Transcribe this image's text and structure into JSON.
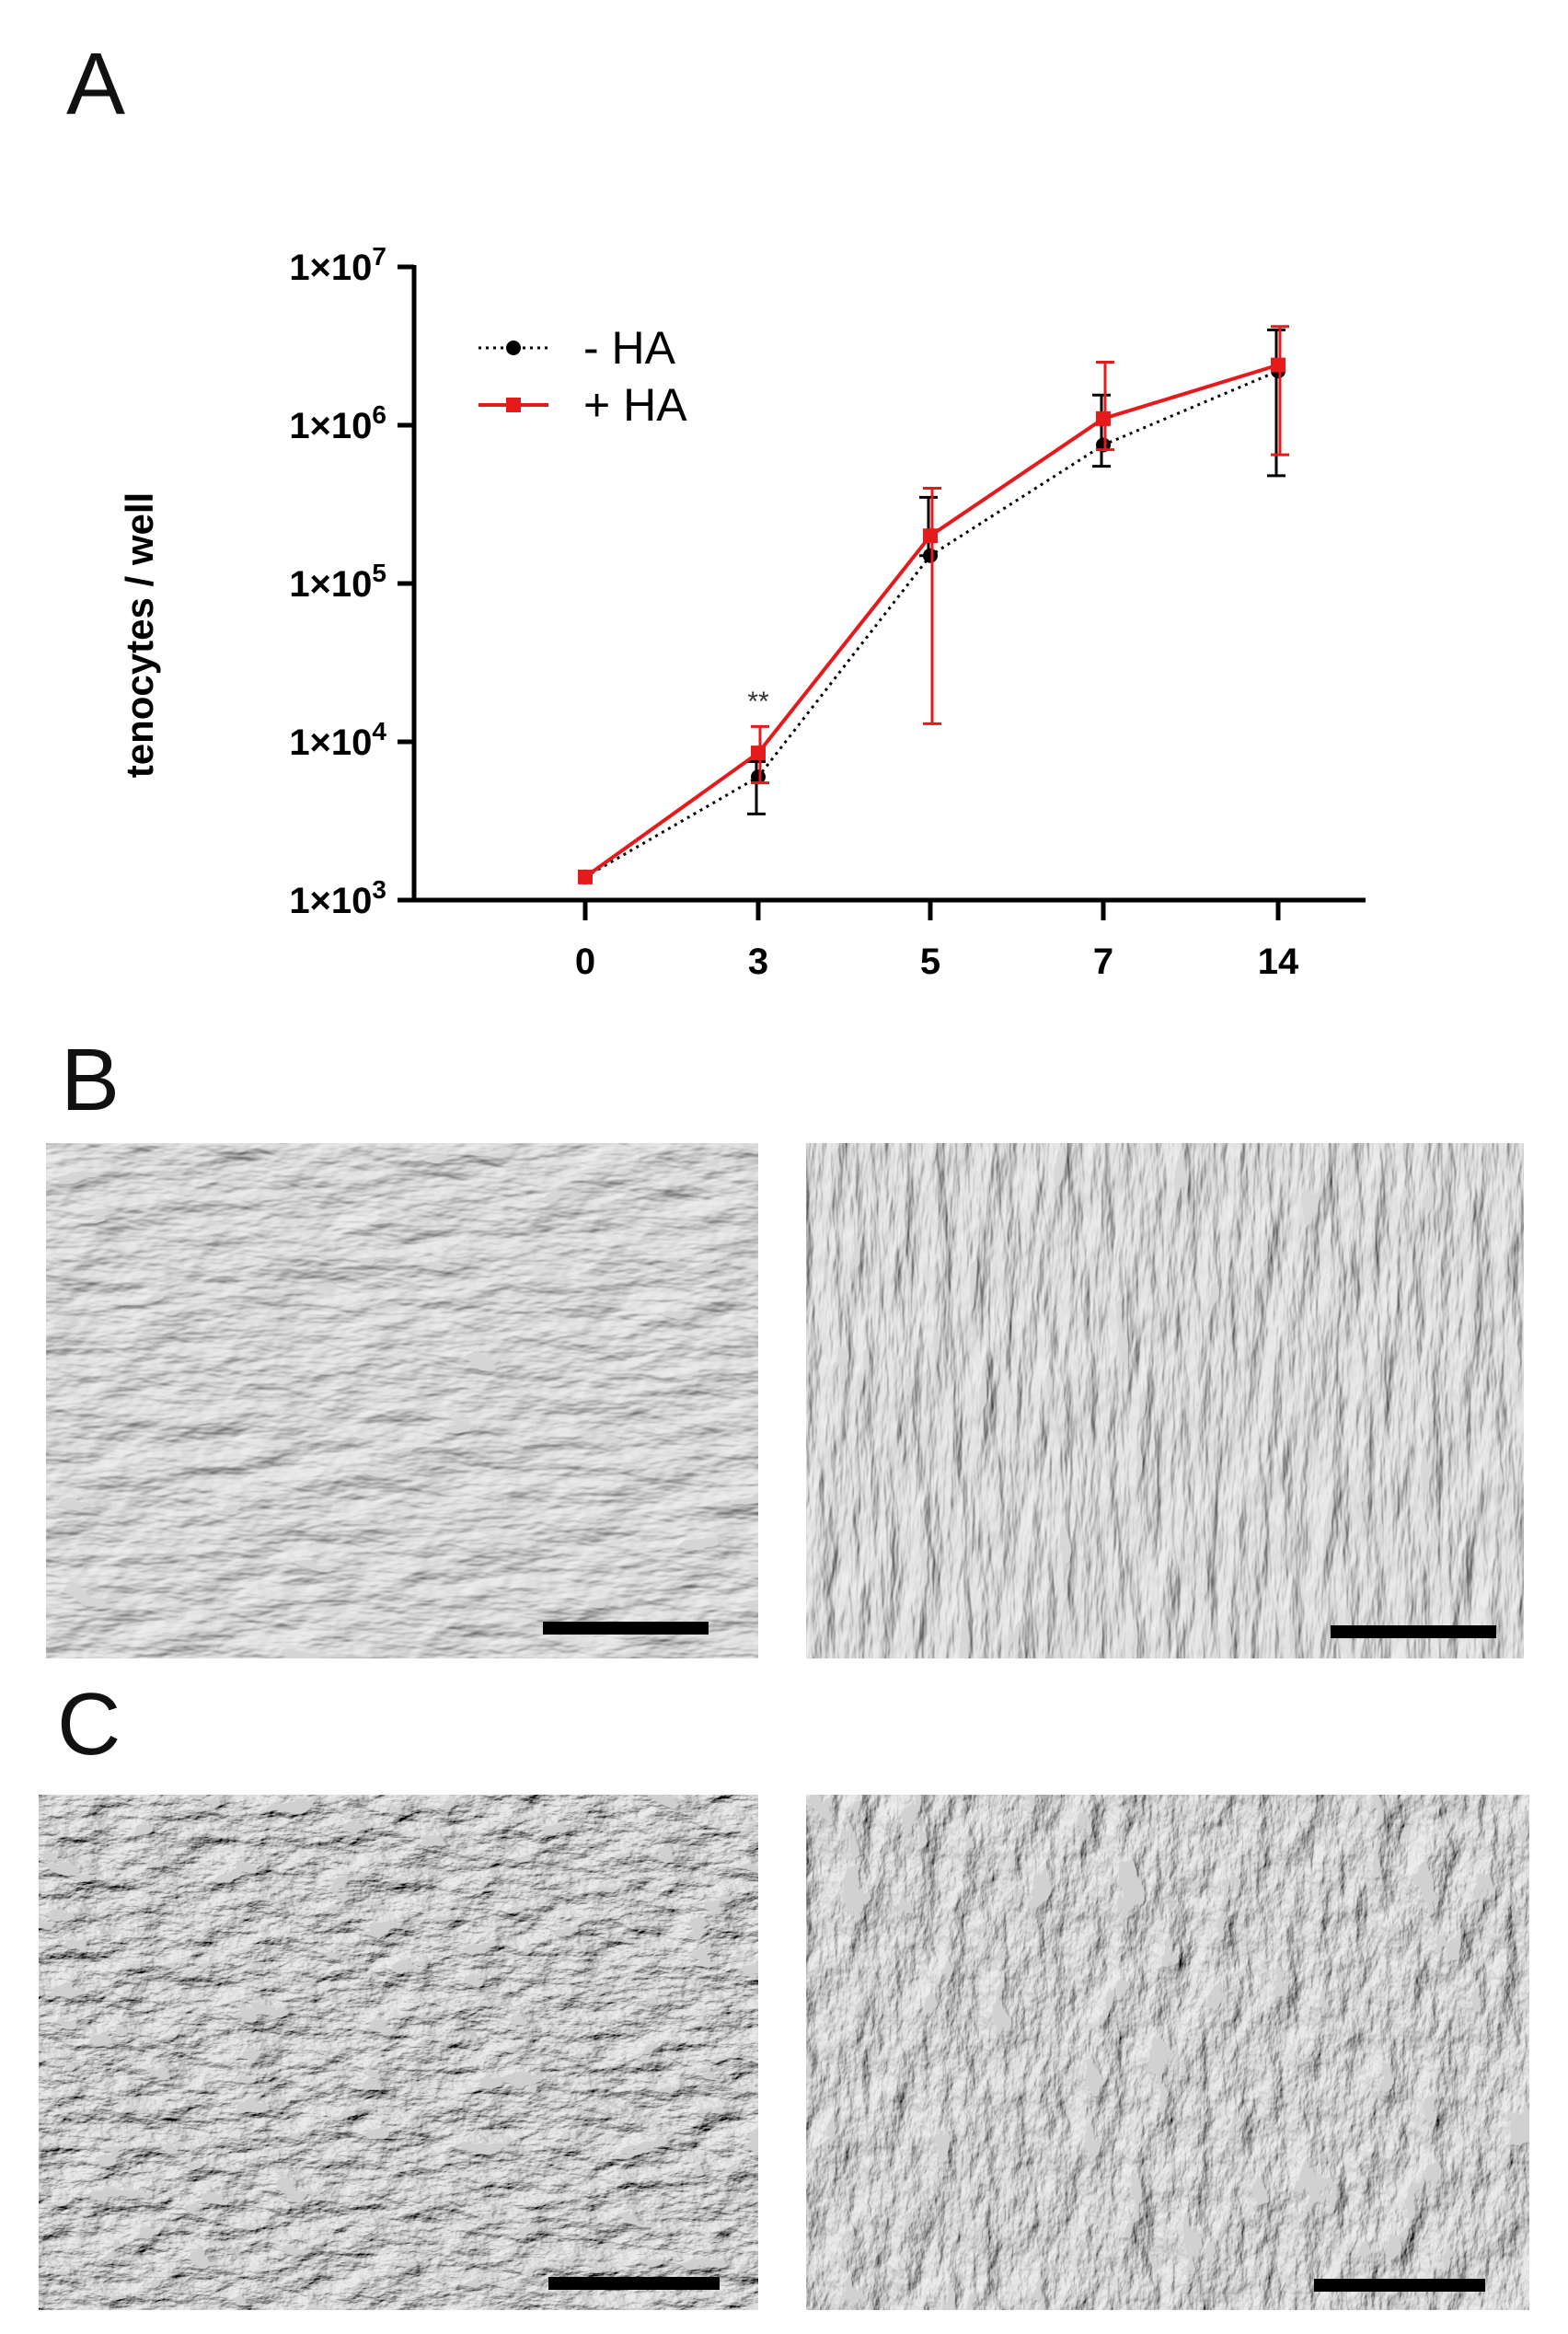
{
  "panels": {
    "a": "A",
    "b": "B",
    "c": "C"
  },
  "chart_data": {
    "type": "line",
    "ylabel": "tenocytes / well",
    "yscale": "log",
    "ylim": [
      1000,
      10000000
    ],
    "y_ticks": [
      {
        "value": 1000,
        "base": "1×10",
        "exp": "3"
      },
      {
        "value": 10000,
        "base": "1×10",
        "exp": "4"
      },
      {
        "value": 100000,
        "base": "1×10",
        "exp": "5"
      },
      {
        "value": 1000000,
        "base": "1×10",
        "exp": "6"
      },
      {
        "value": 10000000,
        "base": "1×10",
        "exp": "7"
      }
    ],
    "categories": [
      "0",
      "3",
      "5",
      "7",
      "14"
    ],
    "legend_position": "top-left",
    "series": [
      {
        "name": "- HA",
        "color": "#000000",
        "line": "dotted",
        "marker": "circle",
        "values": [
          1400,
          6000,
          150000,
          750000,
          2200000
        ],
        "err_low": [
          1400,
          3500,
          150000,
          550000,
          480000
        ],
        "err_high": [
          1400,
          7500,
          350000,
          1550000,
          4000000
        ]
      },
      {
        "name": "+ HA",
        "color": "#e41a1c",
        "line": "solid",
        "marker": "square",
        "values": [
          1400,
          8500,
          200000,
          1100000,
          2400000
        ],
        "err_low": [
          1400,
          5500,
          13000,
          700000,
          650000
        ],
        "err_high": [
          1400,
          12500,
          400000,
          2500000,
          4200000
        ]
      }
    ],
    "annotations": [
      {
        "x": "3",
        "text": "**"
      }
    ]
  }
}
